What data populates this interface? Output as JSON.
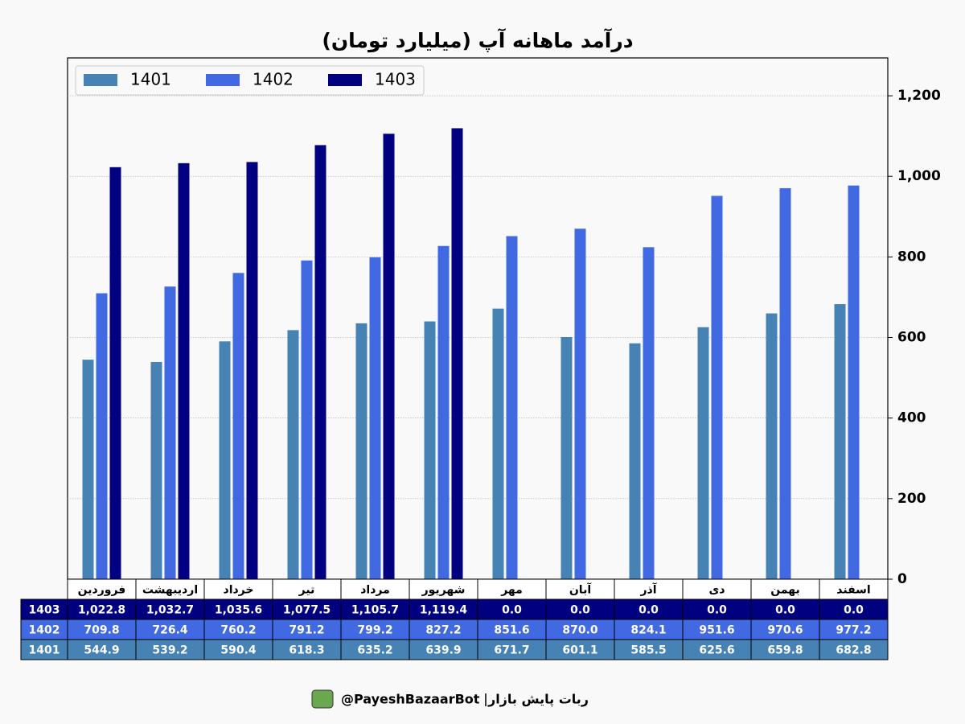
{
  "chart_data": {
    "type": "bar",
    "title": "درآمد ماهانه آپ (میلیارد تومان)",
    "categories": [
      "فروردین",
      "اردیبهشت",
      "خرداد",
      "تیر",
      "مرداد",
      "شهریور",
      "مهر",
      "آبان",
      "آذر",
      "دی",
      "بهمن",
      "اسفند"
    ],
    "series": [
      {
        "name": "1401",
        "color": "#4682b4",
        "values": [
          544.9,
          539.2,
          590.4,
          618.3,
          635.2,
          639.9,
          671.7,
          601.1,
          585.5,
          625.6,
          659.8,
          682.8
        ],
        "value_labels": [
          "544.9",
          "539.2",
          "590.4",
          "618.3",
          "635.2",
          "639.9",
          "671.7",
          "601.1",
          "585.5",
          "625.6",
          "659.8",
          "682.8"
        ]
      },
      {
        "name": "1402",
        "color": "#4169e1",
        "values": [
          709.8,
          726.4,
          760.2,
          791.2,
          799.2,
          827.2,
          851.6,
          870.0,
          824.1,
          951.6,
          970.6,
          977.2
        ],
        "value_labels": [
          "709.8",
          "726.4",
          "760.2",
          "791.2",
          "799.2",
          "827.2",
          "851.6",
          "870.0",
          "824.1",
          "951.6",
          "970.6",
          "977.2"
        ]
      },
      {
        "name": "1403",
        "color": "#000080",
        "values": [
          1022.8,
          1032.7,
          1035.6,
          1077.5,
          1105.7,
          1119.4,
          0,
          0,
          0,
          0,
          0,
          0
        ],
        "value_labels": [
          "1,022.8",
          "1,032.7",
          "1,035.6",
          "1,077.5",
          "1,105.7",
          "1,119.4",
          "0.0",
          "0.0",
          "0.0",
          "0.0",
          "0.0",
          "0.0"
        ]
      }
    ],
    "ylim": [
      0,
      1294
    ],
    "yticks": [
      0,
      200,
      400,
      600,
      800,
      {
        "value": 1000,
        "label": "1,000"
      },
      {
        "value": 1200,
        "label": "1,200"
      }
    ],
    "grid": true,
    "legend": "upper-left",
    "source": {
      "name": "ربات پایش بازار",
      "handle": "@PayeshBazaarBot"
    }
  }
}
